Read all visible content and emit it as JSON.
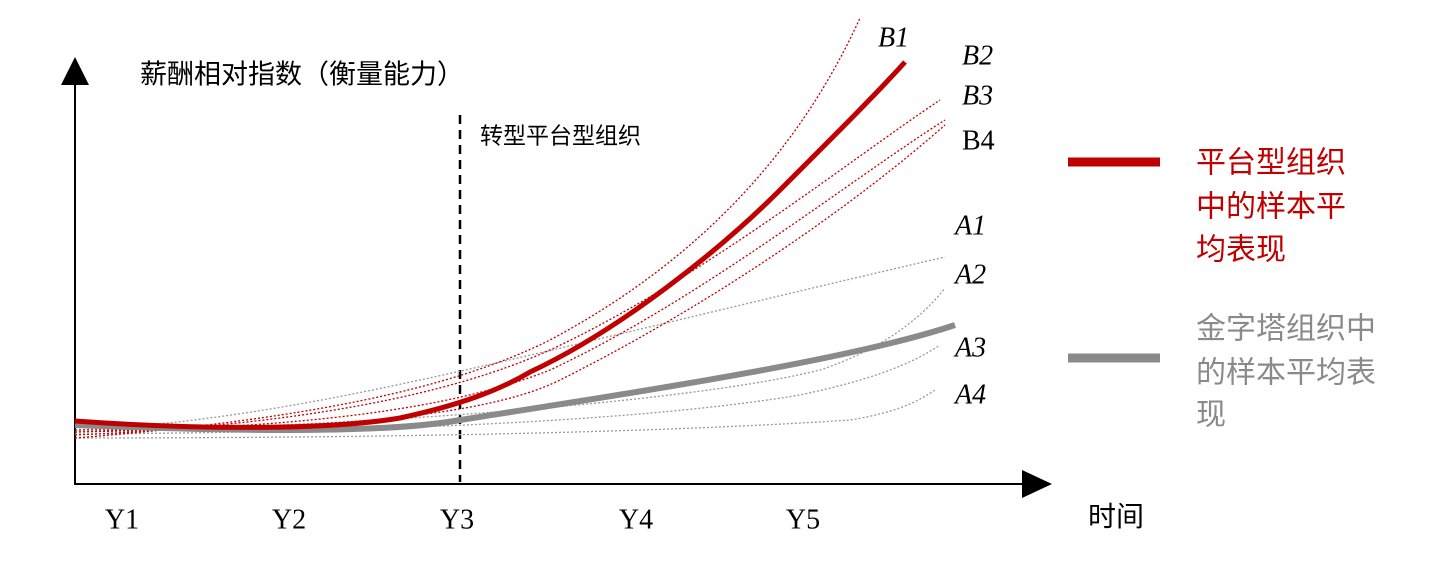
{
  "y_axis_label": "薪酬相对指数（衡量能力）",
  "x_axis_label": "时间",
  "x_labels": [
    "Y1",
    "Y2",
    "Y3",
    "Y4",
    "Y5"
  ],
  "annotation": "转型平台型组织",
  "curve_labels": {
    "b": [
      "B1",
      "B2",
      "B3",
      "B4"
    ],
    "a": [
      "A1",
      "A2",
      "A3",
      "A4"
    ]
  },
  "legend": [
    {
      "lines": [
        "平台型组织",
        "中的样本平",
        "均表现"
      ]
    },
    {
      "lines": [
        "金字塔组织中",
        "的样本平均表",
        "现"
      ]
    }
  ]
}
